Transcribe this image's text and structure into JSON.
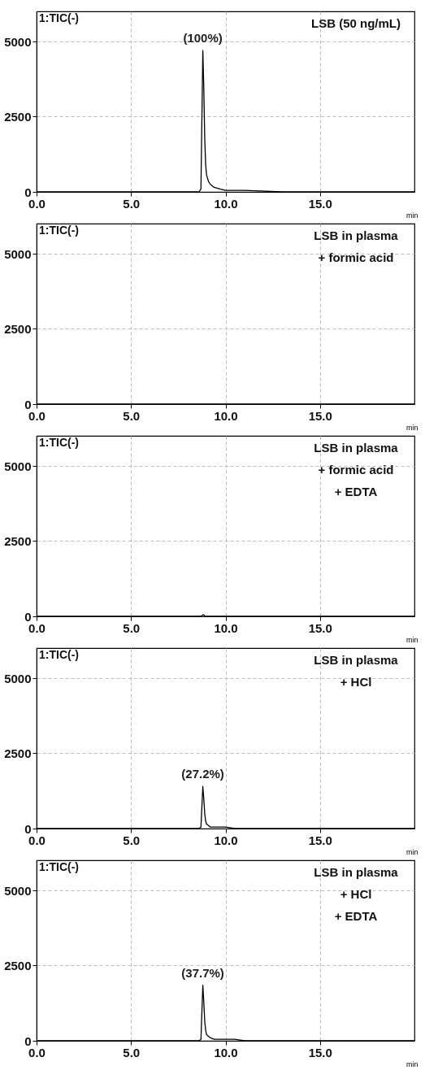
{
  "chart_data": [
    {
      "type": "line",
      "color": "#000000",
      "xlabel": "min",
      "xlim": [
        0,
        20
      ],
      "xticks": [
        {
          "value": 0,
          "label": "0.0"
        },
        {
          "value": 5,
          "label": "5.0"
        },
        {
          "value": 10,
          "label": "10.0"
        },
        {
          "value": 15,
          "label": "15.0"
        }
      ],
      "ylim": [
        0,
        6000
      ],
      "yticks": [
        0,
        2500,
        5000
      ],
      "grid": true,
      "x": [
        0,
        2,
        4,
        6,
        8,
        8.6,
        8.7,
        8.8,
        8.85,
        8.9,
        8.95,
        9.0,
        9.1,
        9.2,
        9.4,
        9.7,
        10.0,
        10.5,
        11,
        13,
        15,
        17,
        20
      ],
      "values": [
        0,
        0,
        0,
        0,
        0,
        0,
        100,
        4700,
        3500,
        1800,
        900,
        550,
        350,
        250,
        150,
        100,
        50,
        50,
        50,
        0,
        0,
        0,
        0
      ],
      "annotations": [
        "1:TIC(-)",
        "LSB (50 ng/mL)",
        "(100%)"
      ]
    },
    {
      "type": "line",
      "color": "#000000",
      "xlabel": "min",
      "xlim": [
        0,
        20
      ],
      "xticks": [
        {
          "value": 0,
          "label": "0.0"
        },
        {
          "value": 5,
          "label": "5.0"
        },
        {
          "value": 10,
          "label": "10.0"
        },
        {
          "value": 15,
          "label": "15.0"
        }
      ],
      "ylim": [
        0,
        6000
      ],
      "yticks": [
        0,
        2500,
        5000
      ],
      "grid": true,
      "x": [
        0,
        2,
        4,
        6,
        8,
        8.6,
        8.7,
        8.8,
        8.85,
        8.9,
        8.95,
        9.0,
        9.1,
        9.2,
        9.4,
        9.7,
        10.0,
        10.5,
        11,
        13,
        15,
        17,
        20
      ],
      "values": [
        0,
        0,
        0,
        0,
        0,
        0,
        0,
        0,
        0,
        0,
        0,
        0,
        0,
        0,
        0,
        0,
        0,
        0,
        0,
        0,
        0,
        0,
        0
      ],
      "annotations": [
        "1:TIC(-)",
        "LSB in plasma\n+ formic acid"
      ]
    },
    {
      "type": "line",
      "color": "#000000",
      "xlabel": "min",
      "xlim": [
        0,
        20
      ],
      "xticks": [
        {
          "value": 0,
          "label": "0.0"
        },
        {
          "value": 5,
          "label": "5.0"
        },
        {
          "value": 10,
          "label": "10.0"
        },
        {
          "value": 15,
          "label": "15.0"
        }
      ],
      "ylim": [
        0,
        6000
      ],
      "yticks": [
        0,
        2500,
        5000
      ],
      "grid": true,
      "x": [
        0,
        2,
        4,
        6,
        8,
        8.6,
        8.7,
        8.8,
        8.85,
        8.9,
        8.95,
        9.0,
        9.1,
        9.2,
        9.4,
        9.7,
        10.0,
        10.5,
        11,
        13,
        15,
        17,
        20
      ],
      "values": [
        0,
        0,
        0,
        0,
        0,
        0,
        0,
        50,
        50,
        0,
        0,
        0,
        0,
        0,
        0,
        0,
        0,
        0,
        0,
        0,
        0,
        0,
        0
      ],
      "annotations": [
        "1:TIC(-)",
        "LSB in plasma\n+ formic acid\n+ EDTA"
      ]
    },
    {
      "type": "line",
      "color": "#000000",
      "xlabel": "min",
      "xlim": [
        0,
        20
      ],
      "xticks": [
        {
          "value": 0,
          "label": "0.0"
        },
        {
          "value": 5,
          "label": "5.0"
        },
        {
          "value": 10,
          "label": "10.0"
        },
        {
          "value": 15,
          "label": "15.0"
        }
      ],
      "ylim": [
        0,
        6000
      ],
      "yticks": [
        0,
        2500,
        5000
      ],
      "grid": true,
      "x": [
        0,
        2,
        4,
        6,
        8,
        8.6,
        8.7,
        8.8,
        8.85,
        8.9,
        8.95,
        9.0,
        9.1,
        9.2,
        9.4,
        9.7,
        10.0,
        10.5,
        11,
        13,
        15,
        17,
        20
      ],
      "values": [
        0,
        0,
        0,
        0,
        0,
        0,
        50,
        1400,
        1000,
        500,
        250,
        150,
        100,
        50,
        50,
        50,
        50,
        0,
        0,
        0,
        0,
        0,
        0
      ],
      "annotations": [
        "1:TIC(-)",
        "LSB in plasma\n+ HCl",
        "(27.2%)"
      ]
    },
    {
      "type": "line",
      "color": "#000000",
      "xlabel": "min",
      "xlim": [
        0,
        20
      ],
      "xticks": [
        {
          "value": 0,
          "label": "0.0"
        },
        {
          "value": 5,
          "label": "5.0"
        },
        {
          "value": 10,
          "label": "10.0"
        },
        {
          "value": 15,
          "label": "15.0"
        }
      ],
      "ylim": [
        0,
        6000
      ],
      "yticks": [
        0,
        2500,
        5000
      ],
      "grid": true,
      "x": [
        0,
        2,
        4,
        6,
        8,
        8.6,
        8.7,
        8.8,
        8.85,
        8.9,
        8.95,
        9.0,
        9.1,
        9.2,
        9.4,
        9.7,
        10.0,
        10.5,
        11,
        13,
        15,
        17,
        20
      ],
      "values": [
        0,
        0,
        0,
        0,
        0,
        0,
        50,
        1850,
        1300,
        650,
        350,
        200,
        150,
        100,
        50,
        50,
        50,
        50,
        0,
        0,
        0,
        0,
        0
      ],
      "annotations": [
        "1:TIC(-)",
        "LSB in plasma\n+ HCl\n+ EDTA",
        "(37.7%)"
      ]
    }
  ]
}
